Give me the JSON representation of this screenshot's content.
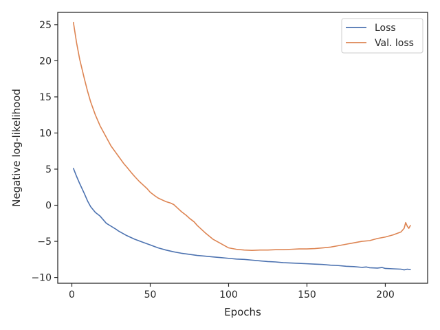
{
  "chart_data": {
    "type": "line",
    "title": "",
    "xlabel": "Epochs",
    "ylabel": "Negative log-likelihood",
    "xlim": [
      -9,
      227
    ],
    "ylim": [
      -10.8,
      26.7
    ],
    "xticks": [
      0,
      50,
      100,
      150,
      200
    ],
    "yticks": [
      -10,
      -5,
      0,
      5,
      10,
      15,
      20,
      25
    ],
    "grid": false,
    "legend_position": "top-right",
    "series": [
      {
        "name": "Loss",
        "color": "#4c72b0",
        "x": [
          1,
          3,
          5,
          8,
          10,
          12,
          15,
          18,
          20,
          22,
          25,
          28,
          30,
          35,
          40,
          45,
          50,
          55,
          60,
          65,
          70,
          75,
          80,
          85,
          90,
          95,
          100,
          105,
          110,
          115,
          120,
          125,
          130,
          135,
          140,
          145,
          150,
          155,
          160,
          165,
          170,
          175,
          180,
          185,
          188,
          190,
          195,
          198,
          200,
          205,
          210,
          212,
          214,
          216
        ],
        "y": [
          5.1,
          4.0,
          3.0,
          1.6,
          0.6,
          -0.2,
          -1.0,
          -1.5,
          -2.0,
          -2.5,
          -2.9,
          -3.3,
          -3.6,
          -4.2,
          -4.7,
          -5.1,
          -5.5,
          -5.9,
          -6.2,
          -6.45,
          -6.65,
          -6.8,
          -6.95,
          -7.05,
          -7.15,
          -7.25,
          -7.35,
          -7.45,
          -7.5,
          -7.6,
          -7.7,
          -7.8,
          -7.85,
          -7.95,
          -8.0,
          -8.05,
          -8.1,
          -8.15,
          -8.2,
          -8.3,
          -8.35,
          -8.45,
          -8.5,
          -8.6,
          -8.55,
          -8.65,
          -8.7,
          -8.62,
          -8.75,
          -8.8,
          -8.85,
          -8.95,
          -8.85,
          -8.9
        ]
      },
      {
        "name": "Val. loss",
        "color": "#dd8452",
        "x": [
          1,
          3,
          5,
          8,
          10,
          12,
          15,
          18,
          20,
          23,
          25,
          28,
          30,
          33,
          35,
          38,
          40,
          43,
          45,
          48,
          50,
          53,
          55,
          58,
          60,
          63,
          65,
          68,
          70,
          73,
          75,
          78,
          80,
          85,
          90,
          95,
          100,
          105,
          110,
          115,
          120,
          125,
          130,
          135,
          140,
          145,
          150,
          155,
          160,
          165,
          170,
          175,
          180,
          185,
          190,
          195,
          200,
          205,
          210,
          212,
          213,
          214,
          215,
          216
        ],
        "y": [
          25.3,
          22.5,
          20.2,
          17.5,
          15.8,
          14.3,
          12.5,
          11.0,
          10.2,
          9.0,
          8.2,
          7.3,
          6.7,
          5.8,
          5.3,
          4.5,
          4.0,
          3.3,
          2.9,
          2.3,
          1.8,
          1.3,
          1.0,
          0.7,
          0.5,
          0.3,
          0.1,
          -0.5,
          -0.9,
          -1.4,
          -1.8,
          -2.3,
          -2.8,
          -3.8,
          -4.7,
          -5.3,
          -5.9,
          -6.1,
          -6.2,
          -6.25,
          -6.2,
          -6.2,
          -6.15,
          -6.15,
          -6.1,
          -6.05,
          -6.05,
          -6.0,
          -5.9,
          -5.8,
          -5.6,
          -5.4,
          -5.2,
          -5.0,
          -4.9,
          -4.6,
          -4.4,
          -4.1,
          -3.7,
          -3.2,
          -2.4,
          -2.9,
          -3.2,
          -2.8
        ]
      }
    ]
  }
}
